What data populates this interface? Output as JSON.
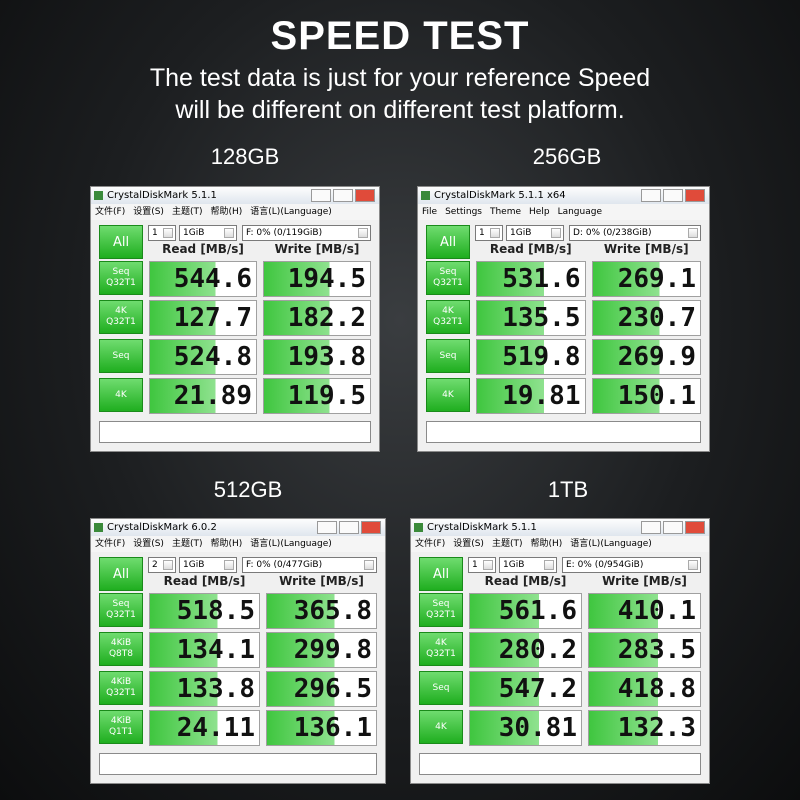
{
  "header": {
    "title": "SPEED TEST",
    "subtitle_lines": [
      "The test data is just for your reference  Speed",
      "will be different on different test platform."
    ]
  },
  "panels": [
    {
      "capacity": "128GB",
      "window_title": "CrystalDiskMark 5.1.1",
      "menu": [
        "文件(F)",
        "设置(S)",
        "主题(T)",
        "帮助(H)",
        "语言(L)(Language)"
      ],
      "all_button": "All",
      "count": "1",
      "size": "1GiB",
      "drive": "F: 0% (0/119GiB)",
      "read_header": "Read [MB/s]",
      "write_header": "Write [MB/s]",
      "rows": [
        {
          "label": [
            "Seq",
            "Q32T1"
          ],
          "read": "544.6",
          "write": "194.5"
        },
        {
          "label": [
            "4K",
            "Q32T1"
          ],
          "read": "127.7",
          "write": "182.2"
        },
        {
          "label": [
            "Seq"
          ],
          "read": "524.8",
          "write": "193.8"
        },
        {
          "label": [
            "4K"
          ],
          "read": "21.89",
          "write": "119.5"
        }
      ]
    },
    {
      "capacity": "256GB",
      "window_title": "CrystalDiskMark 5.1.1 x64",
      "menu": [
        "File",
        "Settings",
        "Theme",
        "Help",
        "Language"
      ],
      "all_button": "All",
      "count": "1",
      "size": "1GiB",
      "drive": "D: 0% (0/238GiB)",
      "read_header": "Read [MB/s]",
      "write_header": "Write [MB/s]",
      "rows": [
        {
          "label": [
            "Seq",
            "Q32T1"
          ],
          "read": "531.6",
          "write": "269.1"
        },
        {
          "label": [
            "4K",
            "Q32T1"
          ],
          "read": "135.5",
          "write": "230.7"
        },
        {
          "label": [
            "Seq"
          ],
          "read": "519.8",
          "write": "269.9"
        },
        {
          "label": [
            "4K"
          ],
          "read": "19.81",
          "write": "150.1"
        }
      ]
    },
    {
      "capacity": "512GB",
      "window_title": "CrystalDiskMark 6.0.2",
      "menu": [
        "文件(F)",
        "设置(S)",
        "主题(T)",
        "帮助(H)",
        "语言(L)(Language)"
      ],
      "all_button": "All",
      "count": "2",
      "size": "1GiB",
      "drive": "F: 0% (0/477GiB)",
      "read_header": "Read [MB/s]",
      "write_header": "Write [MB/s]",
      "rows": [
        {
          "label": [
            "Seq",
            "Q32T1"
          ],
          "read": "518.5",
          "write": "365.8"
        },
        {
          "label": [
            "4KiB",
            "Q8T8"
          ],
          "read": "134.1",
          "write": "299.8"
        },
        {
          "label": [
            "4KiB",
            "Q32T1"
          ],
          "read": "133.8",
          "write": "296.5"
        },
        {
          "label": [
            "4KiB",
            "Q1T1"
          ],
          "read": "24.11",
          "write": "136.1"
        }
      ]
    },
    {
      "capacity": "1TB",
      "window_title": "CrystalDiskMark 5.1.1",
      "menu": [
        "文件(F)",
        "设置(S)",
        "主题(T)",
        "帮助(H)",
        "语言(L)(Language)"
      ],
      "all_button": "All",
      "count": "1",
      "size": "1GiB",
      "drive": "E: 0% (0/954GiB)",
      "read_header": "Read [MB/s]",
      "write_header": "Write [MB/s]",
      "rows": [
        {
          "label": [
            "Seq",
            "Q32T1"
          ],
          "read": "561.6",
          "write": "410.1"
        },
        {
          "label": [
            "4K",
            "Q32T1"
          ],
          "read": "280.2",
          "write": "283.5"
        },
        {
          "label": [
            "Seq"
          ],
          "read": "547.2",
          "write": "418.8"
        },
        {
          "label": [
            "4K"
          ],
          "read": "30.81",
          "write": "132.3"
        }
      ]
    }
  ]
}
